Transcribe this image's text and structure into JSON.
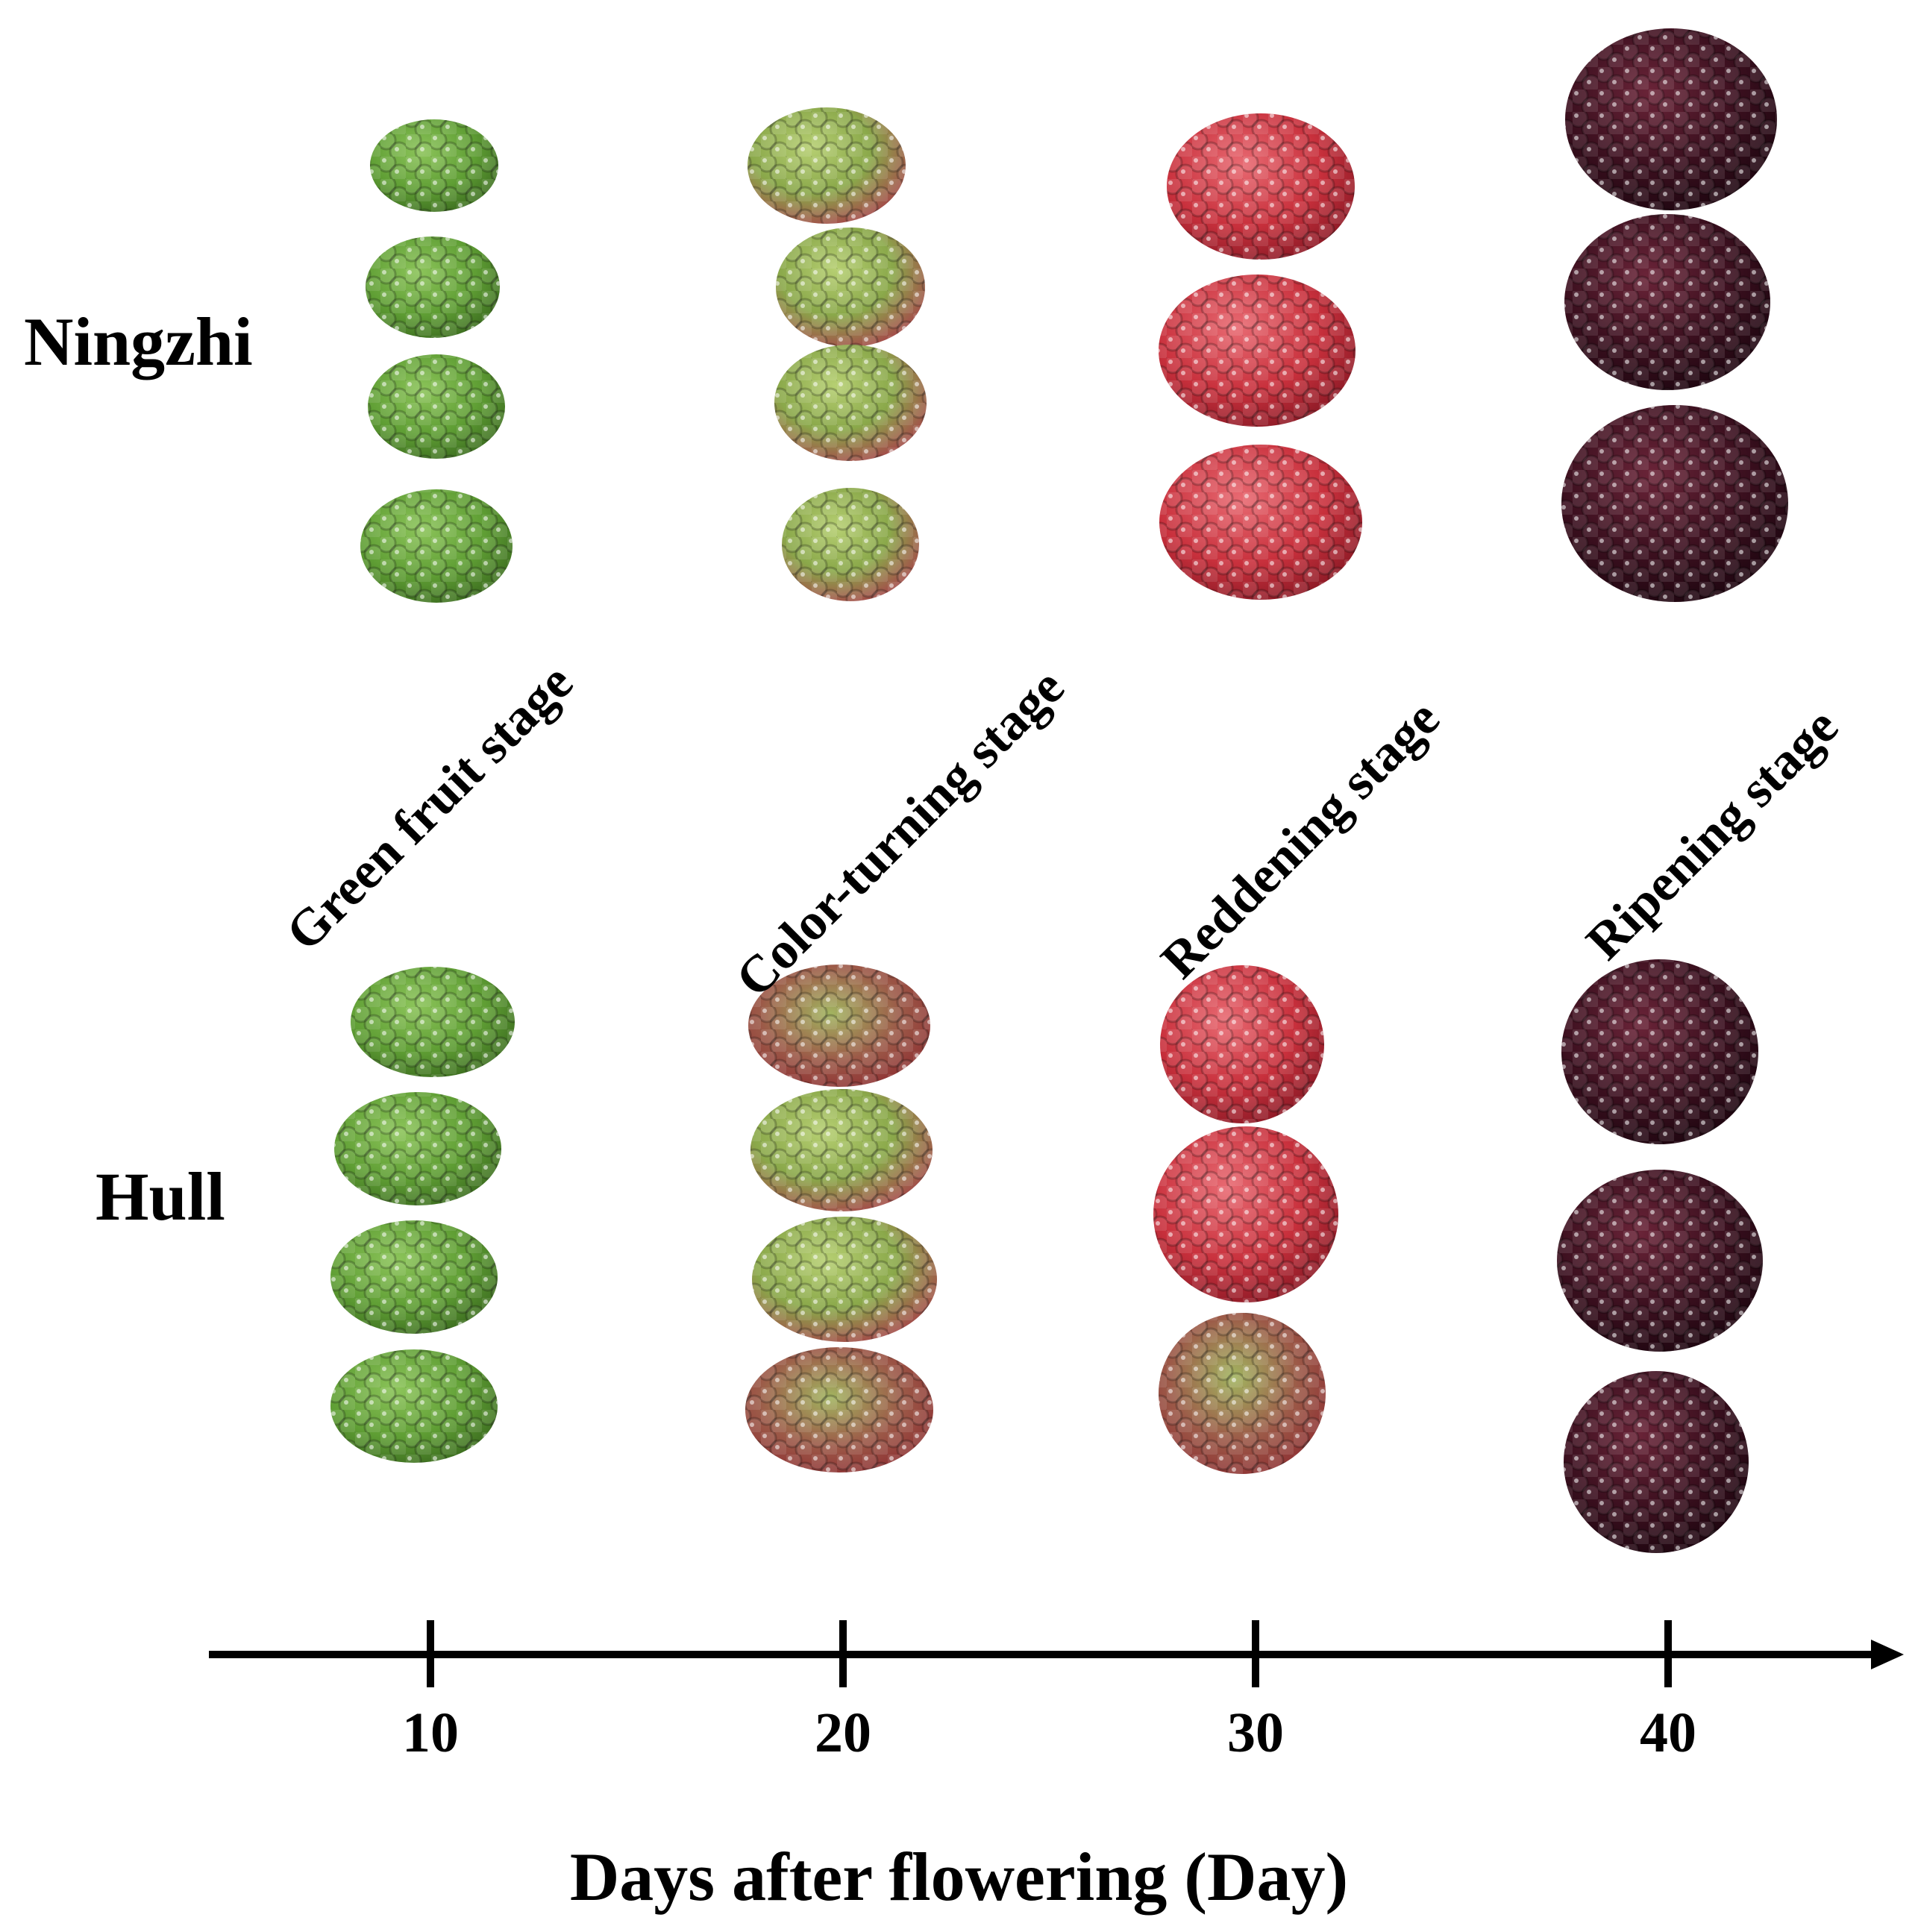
{
  "rows": [
    {
      "label": "Ningzhi"
    },
    {
      "label": "Hull"
    }
  ],
  "stages": [
    {
      "label": "Green fruit stage",
      "day": 10
    },
    {
      "label": "Color-turning stage",
      "day": 20
    },
    {
      "label": "Reddening stage",
      "day": 30
    },
    {
      "label": "Ripening stage",
      "day": 40
    }
  ],
  "axis": {
    "title": "Days after flowering (Day)",
    "ticks": [
      "10",
      "20",
      "30",
      "40"
    ]
  },
  "colors": {
    "green_fruit": "#5f9e34",
    "color_turning": "#8aa84a",
    "turning_blush": "#b8454a",
    "reddening": "#c8303c",
    "ripening": "#3a0f1e",
    "axis": "#000000"
  }
}
